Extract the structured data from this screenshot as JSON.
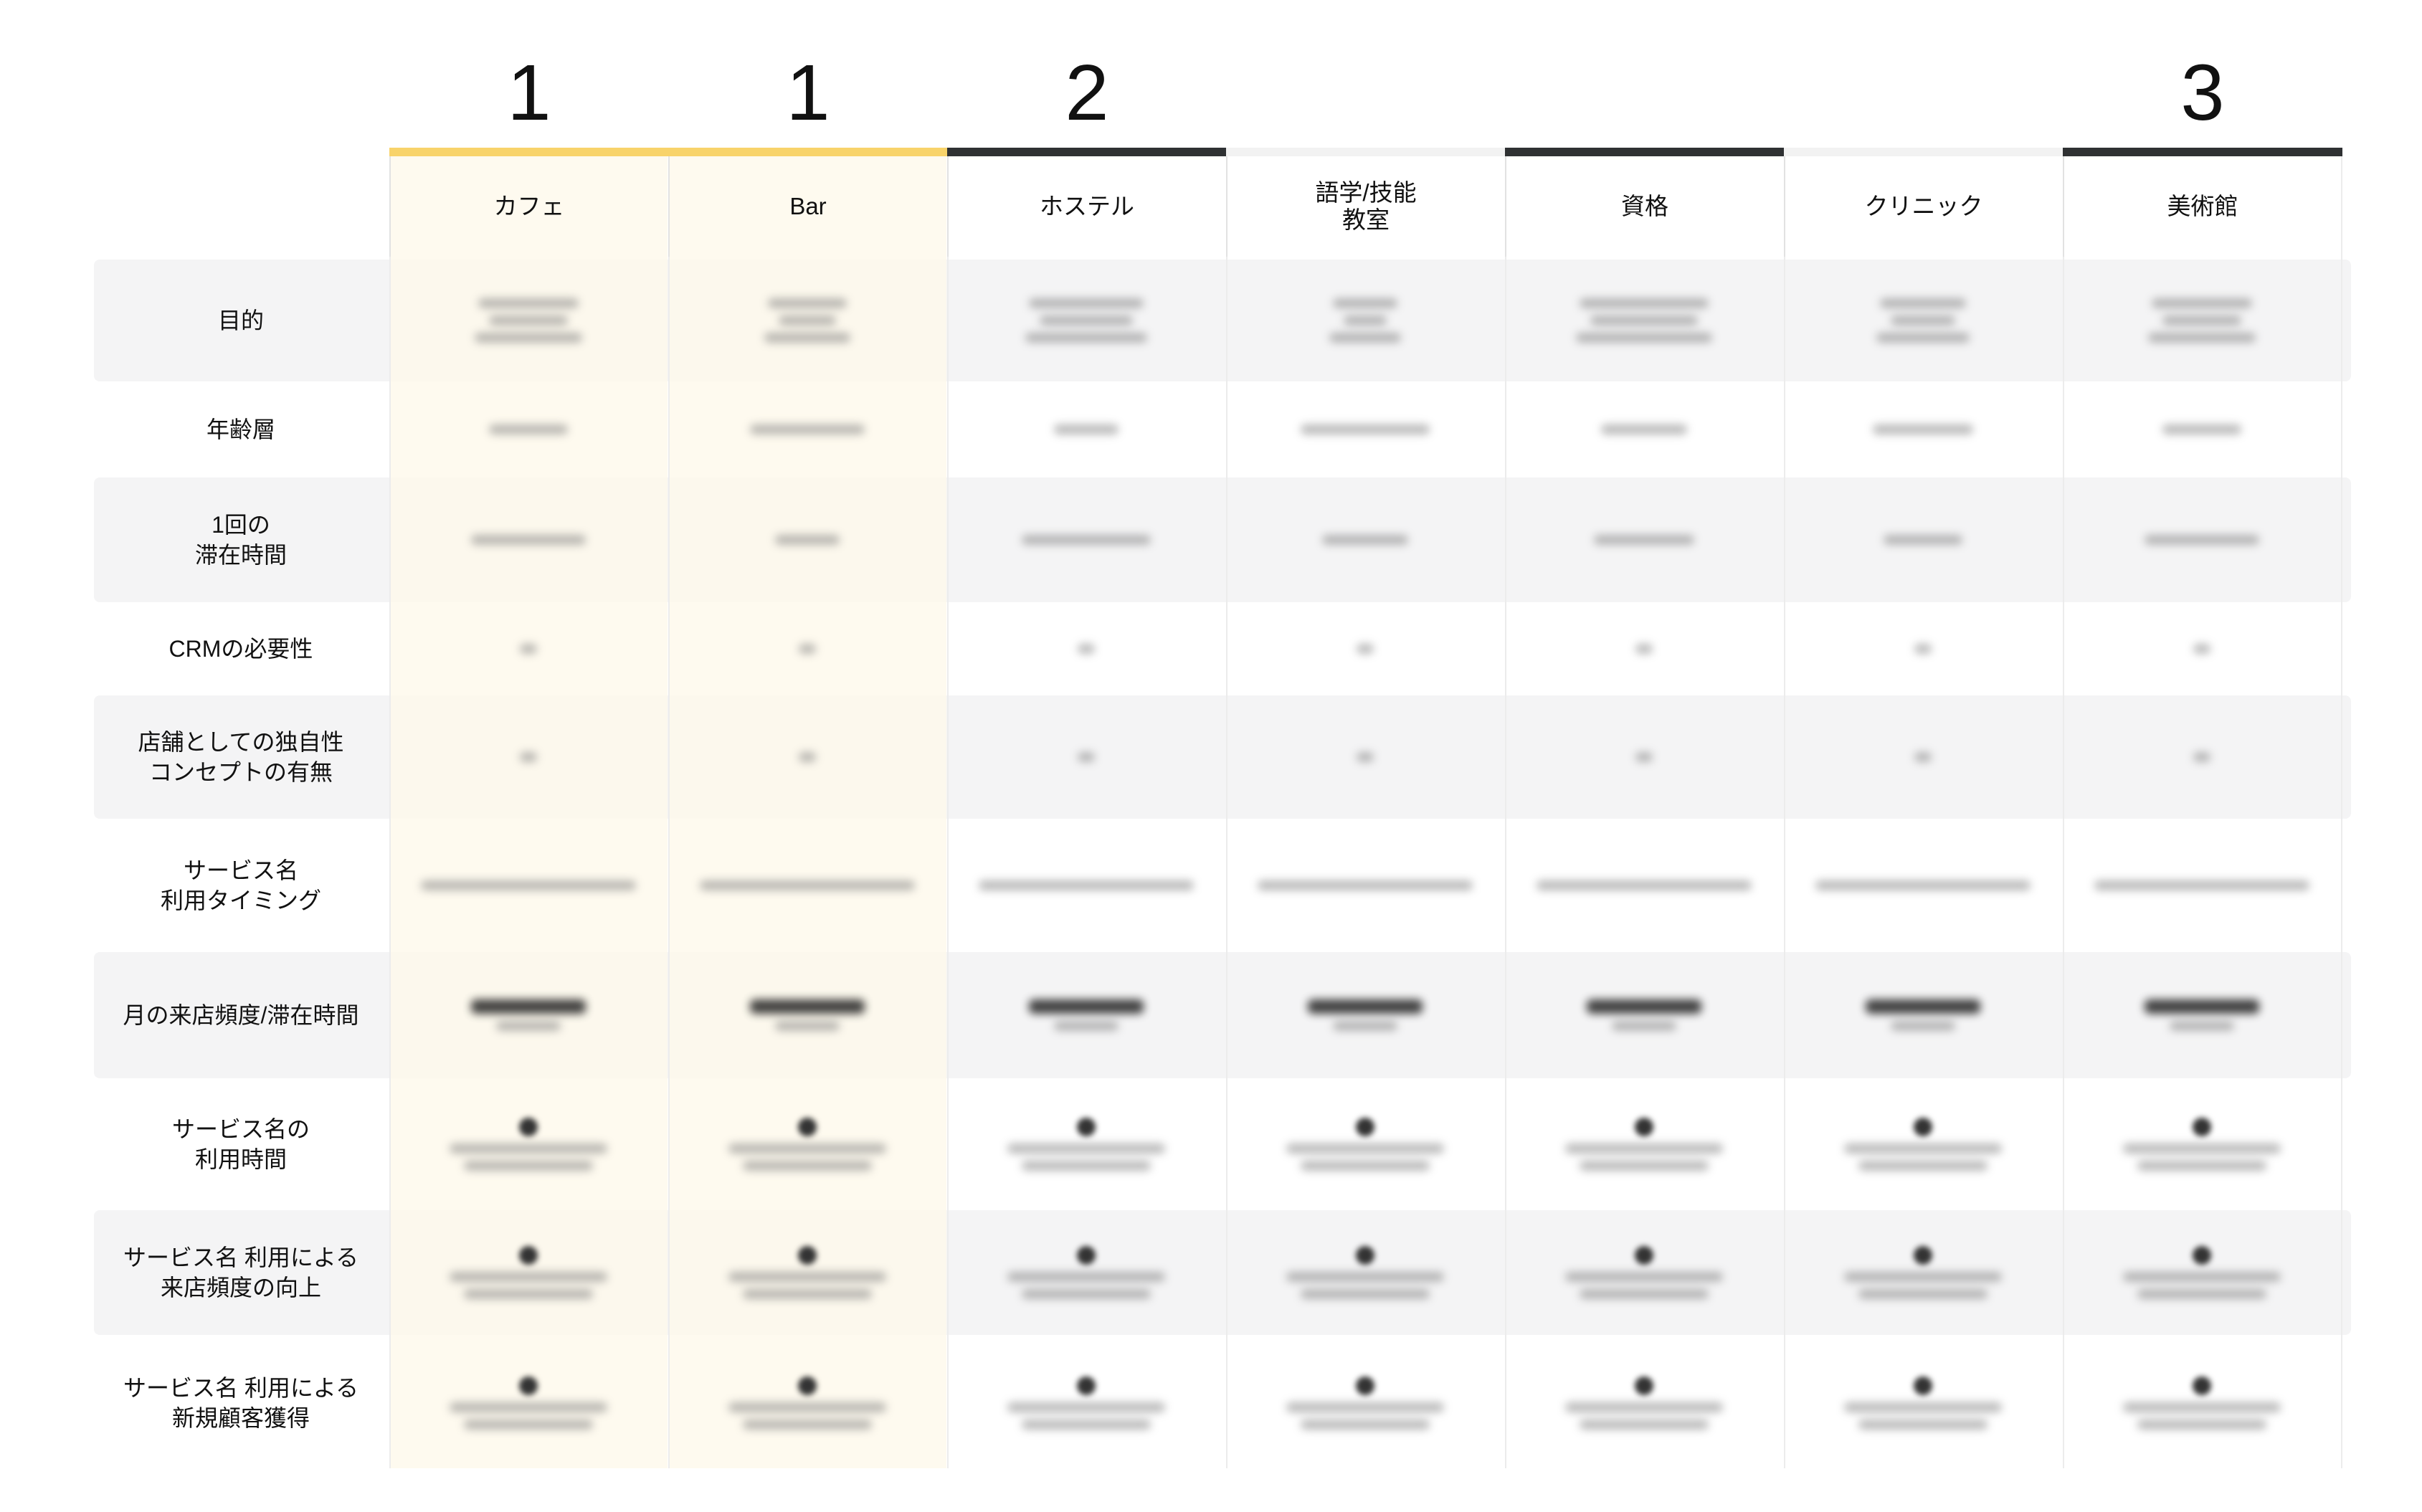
{
  "ranks": [
    {
      "col": 0,
      "text": "1"
    },
    {
      "col": 1,
      "text": "1"
    },
    {
      "col": 2,
      "text": "2"
    },
    {
      "col": 6,
      "text": "3"
    }
  ],
  "colors": {
    "highlight_bar": "#f8d36a",
    "dark_bar": "#2f3133",
    "plain_bar": "#f2f2f2",
    "highlight_bg": "#fef9ea",
    "row_band": "#f4f4f5"
  },
  "columns": [
    {
      "label": "カフェ",
      "top_bar": "highlight",
      "highlight": true
    },
    {
      "label": "Bar",
      "top_bar": "highlight",
      "highlight": true
    },
    {
      "label": "ホステル",
      "top_bar": "dark",
      "highlight": false
    },
    {
      "label": "語学/技能\n教室",
      "top_bar": "plain",
      "highlight": false
    },
    {
      "label": "資格",
      "top_bar": "dark",
      "highlight": false
    },
    {
      "label": "クリニック",
      "top_bar": "plain",
      "highlight": false
    },
    {
      "label": "美術館",
      "top_bar": "dark",
      "highlight": false
    }
  ],
  "rows": [
    {
      "label": "目的",
      "shaded": true
    },
    {
      "label": "年齢層",
      "shaded": false
    },
    {
      "label": "1回の\n滞在時間",
      "shaded": true
    },
    {
      "label": "CRMの必要性",
      "shaded": false
    },
    {
      "label": "店舗としての独自性\nコンセプトの有無",
      "shaded": true
    },
    {
      "label": "サービス名\n利用タイミング",
      "shaded": false
    },
    {
      "label": "月の来店頻度/滞在時間",
      "shaded": true
    },
    {
      "label": "サービス名の\n利用時間",
      "shaded": false
    },
    {
      "label": "サービス名 利用による\n来店頻度の向上",
      "shaded": true
    },
    {
      "label": "サービス名 利用による\n新規顧客獲得",
      "shaded": false
    }
  ]
}
